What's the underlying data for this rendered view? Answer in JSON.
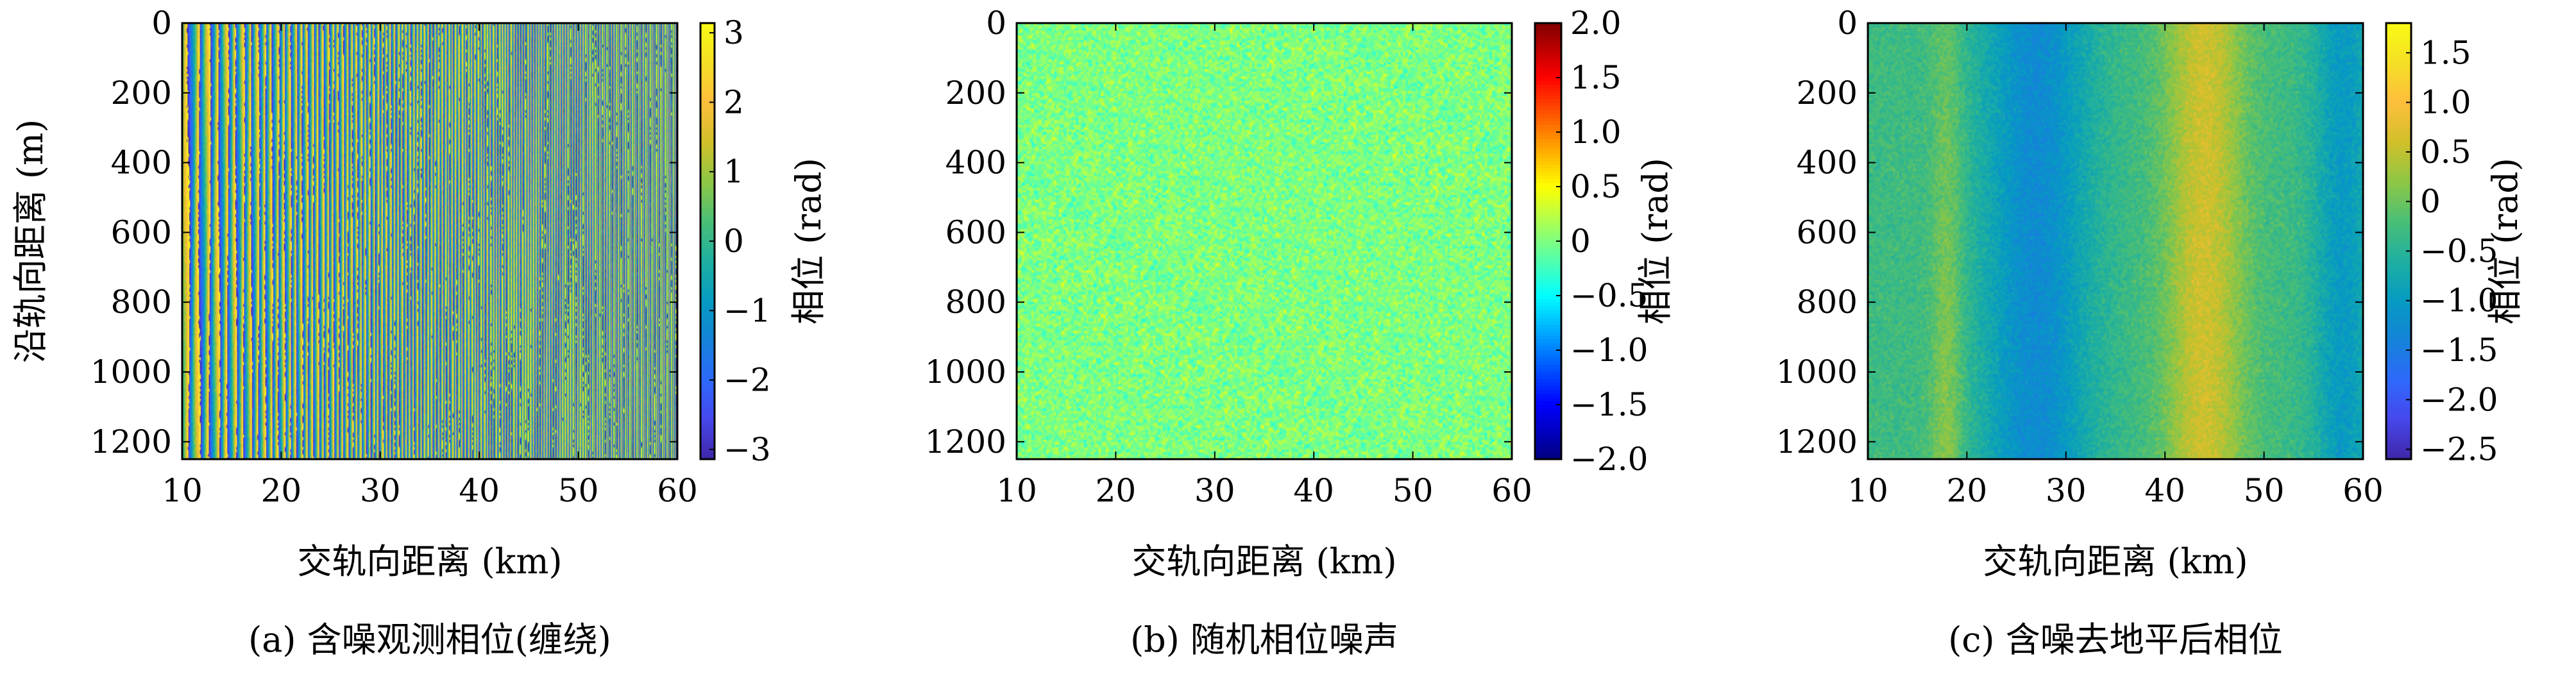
{
  "chart_data": [
    {
      "type": "heatmap",
      "caption": "(a) 含噪观测相位(缠绕)",
      "xlabel": "交轨向距离 (km)",
      "ylabel": "沿轨向距离 (m)",
      "colorbar_label": "相位 (rad)",
      "colormap": "parula",
      "xlim": [
        10,
        60
      ],
      "ylim": [
        0,
        1250
      ],
      "y_reversed": true,
      "xticks": [
        "10",
        "20",
        "30",
        "40",
        "50",
        "60"
      ],
      "yticks": [
        "0",
        "200",
        "400",
        "600",
        "800",
        "1000",
        "1200"
      ],
      "clim": [
        -3.14,
        3.14
      ],
      "cticks": [
        "3",
        "2",
        "1",
        "0",
        "−1",
        "−2",
        "−3"
      ],
      "pattern": "wrapped vertical fringes, fringe density increasing with cross-track distance"
    },
    {
      "type": "heatmap",
      "caption": "(b) 随机相位噪声",
      "xlabel": "交轨向距离 (km)",
      "ylabel": "",
      "colorbar_label": "相位 (rad)",
      "colormap": "jet",
      "xlim": [
        10,
        60
      ],
      "ylim": [
        0,
        1250
      ],
      "y_reversed": true,
      "xticks": [
        "10",
        "20",
        "30",
        "40",
        "50",
        "60"
      ],
      "yticks": [
        "0",
        "200",
        "400",
        "600",
        "800",
        "1000",
        "1200"
      ],
      "clim": [
        -2.0,
        2.0
      ],
      "cticks": [
        "2.0",
        "1.5",
        "1.0",
        "0.5",
        "0",
        "−0.5",
        "−1.0",
        "−1.5",
        "−2.0"
      ],
      "pattern": "uniform random noise centered near 0 rad"
    },
    {
      "type": "heatmap",
      "caption": "(c) 含噪去地平后相位",
      "xlabel": "交轨向距离 (km)",
      "ylabel": "",
      "colorbar_label": "相位 (rad)",
      "colormap": "parula",
      "xlim": [
        10,
        60
      ],
      "ylim": [
        0,
        1250
      ],
      "y_reversed": true,
      "xticks": [
        "10",
        "20",
        "30",
        "40",
        "50",
        "60"
      ],
      "yticks": [
        "0",
        "200",
        "400",
        "600",
        "800",
        "1000",
        "1200"
      ],
      "clim": [
        -2.6,
        1.8
      ],
      "cticks": [
        "1.5",
        "1.0",
        "0.5",
        "0",
        "−0.5",
        "−1.0",
        "−1.5",
        "−2.0",
        "−2.5"
      ],
      "pattern": "smooth vertical bands with noise: low near 27 km, high near 44 km"
    }
  ]
}
